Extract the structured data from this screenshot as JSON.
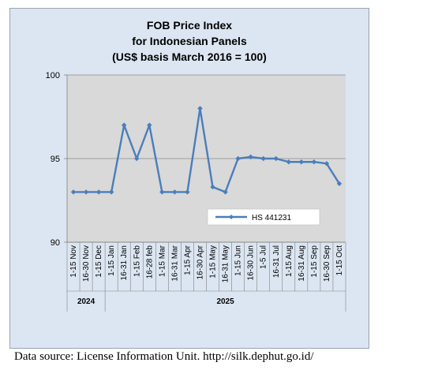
{
  "chart_data": {
    "type": "line",
    "title": [
      "FOB Price Index",
      "for Indonesian Panels",
      "(US$ basis March 2016 = 100)"
    ],
    "categories": [
      "1-15 Nov",
      "16-30 Nov",
      "1-15 Dec",
      "1-15 Jan",
      "16-31 Jan",
      "1-15 Feb",
      "16-28 feb",
      "1-15 Mar",
      "16-31 Mar",
      "1-15 Apr",
      "16-30 Apr",
      "1-15 May",
      "16-31 May",
      "1-15 Jun",
      "16-30 Jun",
      "1-5 Jul",
      "16-31 Jul",
      "1-15 Aug",
      "16-31 Aug",
      "1-15 Sep",
      "16-30 Sep",
      "1-15 Oct"
    ],
    "year_groups": [
      {
        "label": "2024",
        "count": 3
      },
      {
        "label": "2025",
        "count": 19
      }
    ],
    "series": [
      {
        "name": "HS 441231",
        "color": "#4a7ebb",
        "values": [
          93.0,
          93.0,
          93.0,
          93.0,
          97.0,
          95.0,
          97.0,
          93.0,
          93.0,
          93.0,
          98.0,
          93.3,
          93.0,
          95.0,
          95.1,
          95.0,
          95.0,
          94.8,
          94.8,
          94.8,
          94.7,
          93.5
        ]
      }
    ],
    "ylim": [
      90,
      100
    ],
    "yticks": [
      "90",
      "95",
      "100"
    ],
    "grid": "horizontal",
    "plot_background": "#d9d9d9",
    "chart_background": "#dce6f2",
    "legend_placement": "inside-lower-right"
  },
  "source": "Data source: License Information Unit. http://silk.dephut.go.id/"
}
